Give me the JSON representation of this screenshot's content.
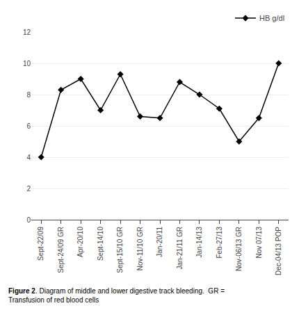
{
  "chart_data": {
    "type": "line",
    "categories": [
      "Sept-22/09",
      "Sept-24/09 GR",
      "Apr-20/10",
      "Sept-14/10",
      "Sept-15/10 GR",
      "Nov-11/10 GR",
      "Jan-20/11",
      "Jan-21/11 GR",
      "Jan-14/13",
      "Feb-27/13",
      "Nov-06/13 GR",
      "Nov 07/13",
      "Dec-04/13 POP"
    ],
    "series": [
      {
        "name": "HB g/dl",
        "color": "#000000",
        "marker": "diamond",
        "line_style": "solid",
        "values": [
          4.0,
          8.3,
          9.0,
          7.0,
          9.3,
          6.6,
          6.5,
          8.8,
          8.0,
          7.1,
          5.0,
          6.5,
          10.0
        ]
      }
    ],
    "ylim": [
      0,
      12
    ],
    "yticks": [
      0,
      2,
      4,
      6,
      8,
      10,
      12
    ],
    "grid": true,
    "legend": "upper right",
    "annotations": [
      "Figure 2",
      ". Diagram of middle and lower digestive track bleeding.  GR =\nTransfusion of red blood cells"
    ]
  }
}
